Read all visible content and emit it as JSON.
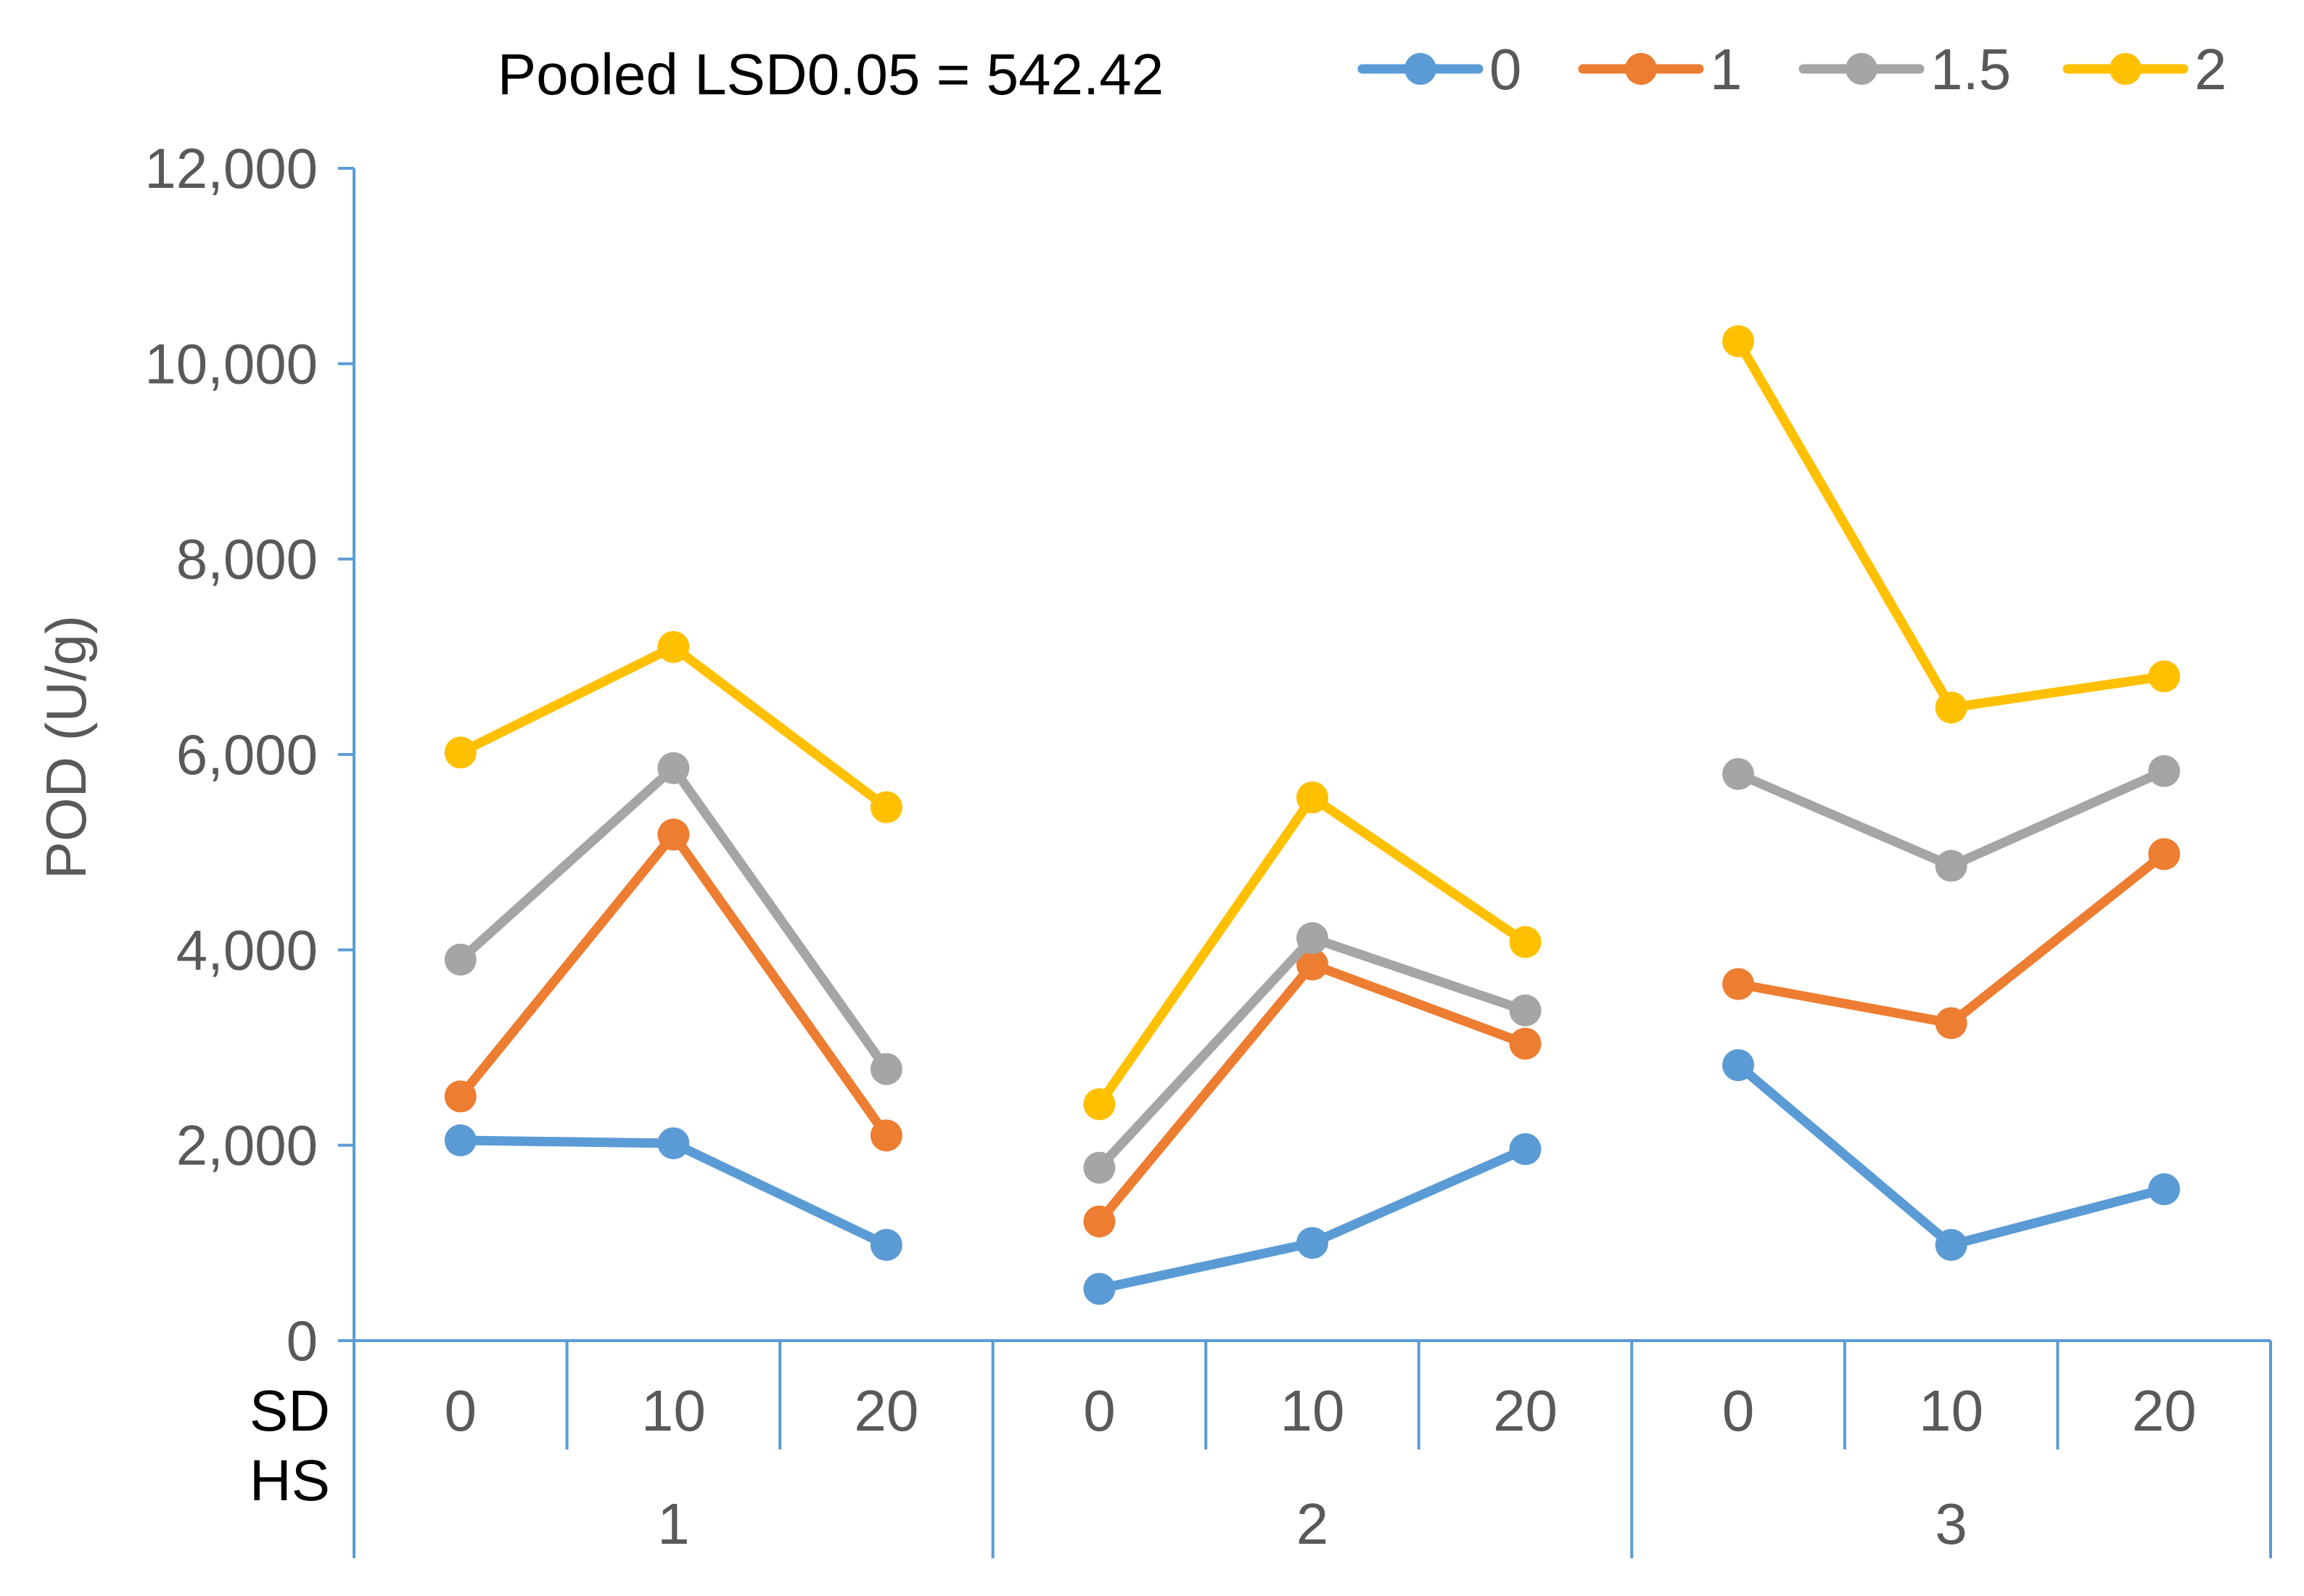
{
  "chart_data": {
    "type": "line",
    "annotation": "Pooled LSD0.05 = 542.42",
    "ylabel": "POD (U/g)",
    "ylim": [
      0,
      12000
    ],
    "yticks": [
      0,
      2000,
      4000,
      6000,
      8000,
      10000,
      12000
    ],
    "ytick_labels": [
      "0",
      "2,000",
      "4,000",
      "6,000",
      "8,000",
      "10,000",
      "12,000"
    ],
    "row_labels": {
      "inner": "SD",
      "outer": "HS"
    },
    "groups": [
      {
        "label": "1",
        "categories": [
          "0",
          "10",
          "20"
        ]
      },
      {
        "label": "2",
        "categories": [
          "0",
          "10",
          "20"
        ]
      },
      {
        "label": "3",
        "categories": [
          "0",
          "10",
          "20"
        ]
      }
    ],
    "legend_position": "top-right",
    "series": [
      {
        "name": "0",
        "color": "#5B9BD5",
        "values": [
          [
            2050,
            2020,
            980
          ],
          [
            530,
            1000,
            1960
          ],
          [
            2820,
            980,
            1550
          ]
        ]
      },
      {
        "name": "1",
        "color": "#ED7D31",
        "values": [
          [
            2500,
            5180,
            2100
          ],
          [
            1220,
            3850,
            3040
          ],
          [
            3650,
            3250,
            4980
          ]
        ]
      },
      {
        "name": "1.5",
        "color": "#A5A5A5",
        "values": [
          [
            3900,
            5860,
            2780
          ],
          [
            1770,
            4120,
            3380
          ],
          [
            5800,
            4860,
            5830
          ]
        ]
      },
      {
        "name": "2",
        "color": "#FFC000",
        "values": [
          [
            6020,
            7100,
            5460
          ],
          [
            2420,
            5560,
            4080
          ],
          [
            10230,
            6480,
            6800
          ]
        ]
      }
    ]
  }
}
